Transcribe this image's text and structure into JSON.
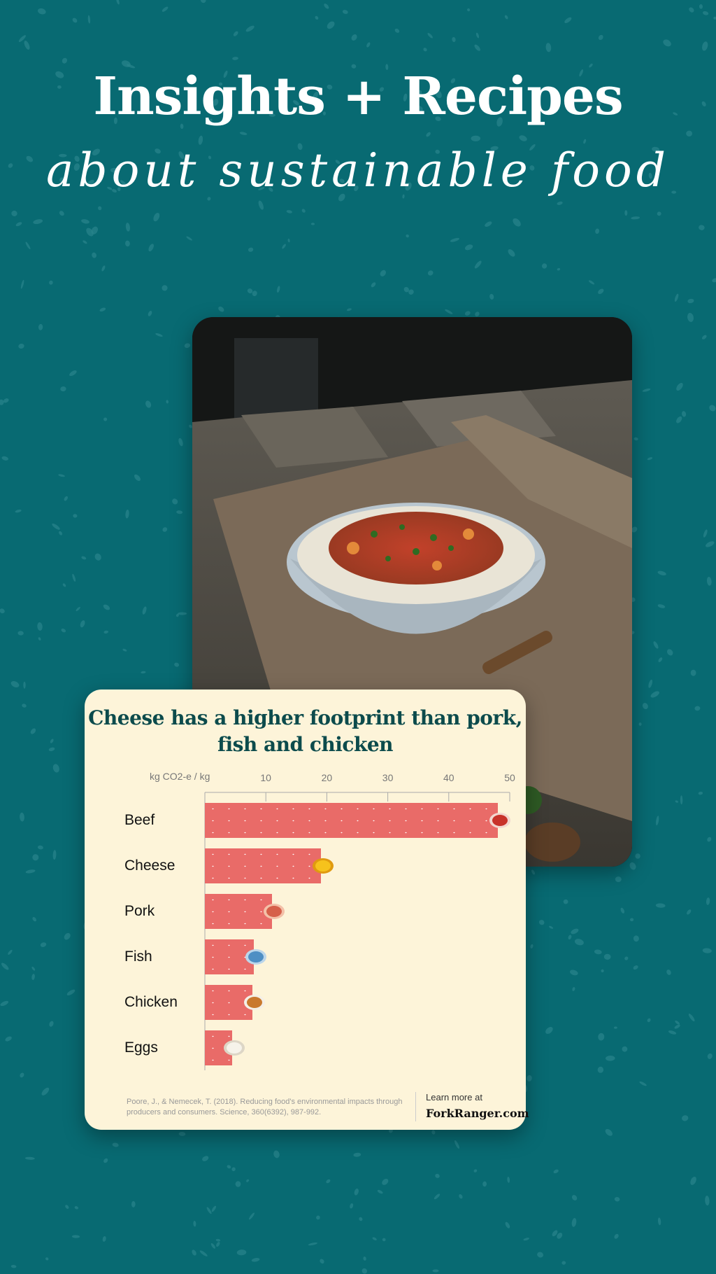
{
  "hero": {
    "title": "Insights + Recipes",
    "subtitle": "about sustainable food"
  },
  "photo": {
    "subject": "pasta-bowl-photo"
  },
  "colors": {
    "background": "#086a72",
    "card": "#fdf4d9",
    "bar": "#e96b68",
    "title": "#0c4b4c"
  },
  "chart_data": {
    "type": "bar",
    "orientation": "horizontal",
    "title": "Cheese has a higher footprint than pork, fish and chicken",
    "xlabel": "kg CO2-e / kg",
    "xlim": [
      0,
      50
    ],
    "xticks": [
      "10",
      "20",
      "30",
      "40",
      "50"
    ],
    "categories": [
      "Beef",
      "Cheese",
      "Pork",
      "Fish",
      "Chicken",
      "Eggs"
    ],
    "values": [
      48,
      19,
      11,
      8,
      7.8,
      4.5
    ],
    "icons": [
      "steak-icon",
      "cheese-icon",
      "bacon-icon",
      "fish-icon",
      "chicken-leg-icon",
      "egg-icon"
    ],
    "grid": false
  },
  "footer": {
    "citation": "Poore, J., & Nemecek, T. (2018). Reducing food's environmental impacts through producers and consumers. Science, 360(6392), 987-992.",
    "learn_more": "Learn more at",
    "site": "ForkRanger.com"
  }
}
